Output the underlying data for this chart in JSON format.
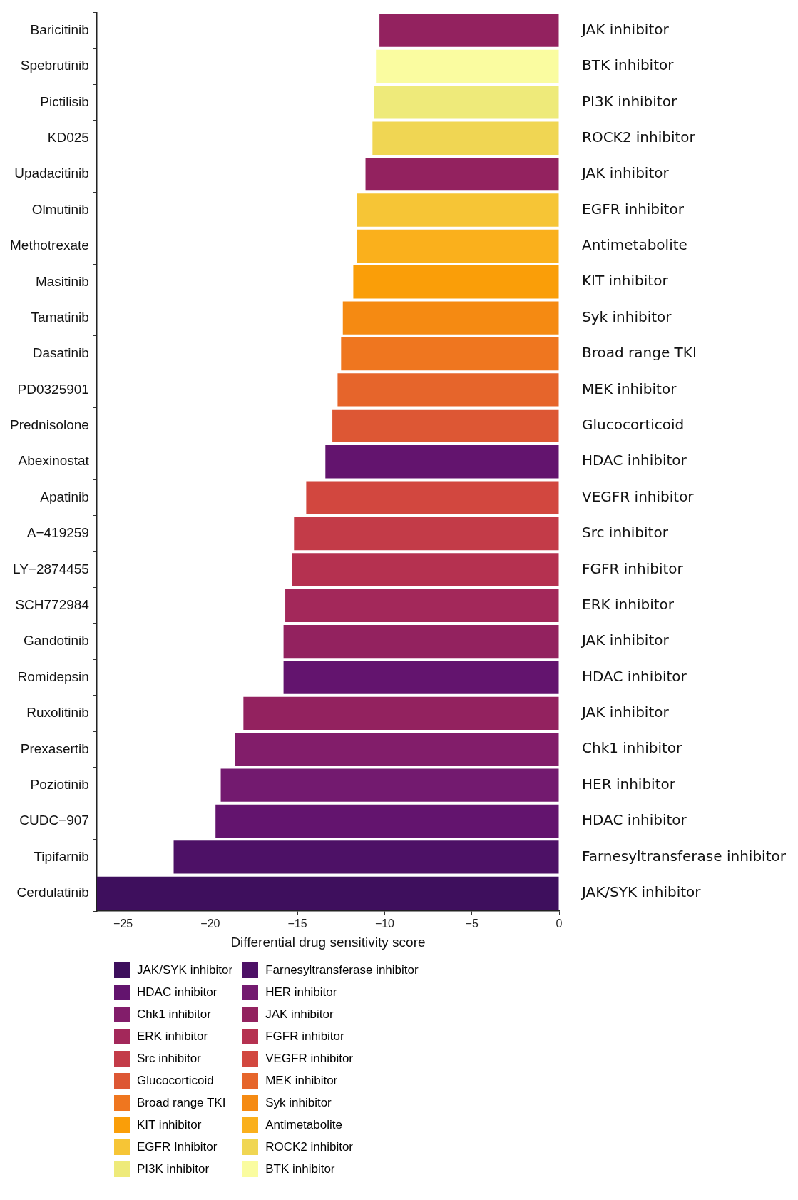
{
  "chart_data": {
    "type": "bar",
    "orientation": "horizontal",
    "stacked": true,
    "xlabel": "Differential drug sensitivity score",
    "categories": [
      "Baricitinib",
      "Spebrutinib",
      "Pictilisib",
      "KD025",
      "Upadacitinib",
      "Olmutinib",
      "Methotrexate",
      "Masitinib",
      "Tamatinib",
      "Dasatinib",
      "PD0325901",
      "Prednisolone",
      "Abexinostat",
      "Apatinib",
      "A−419259",
      "LY−2874455",
      "SCH772984",
      "Gandotinib",
      "Romidepsin",
      "Ruxolitinib",
      "Prexasertib",
      "Poziotinib",
      "CUDC−907",
      "Tipifarnib",
      "Cerdulatinib"
    ],
    "xlim": [
      -26.5,
      0
    ],
    "xticks": [
      {
        "value": -25,
        "label": "−25"
      },
      {
        "value": -20,
        "label": "−20"
      },
      {
        "value": -15,
        "label": "−15"
      },
      {
        "value": -10,
        "label": "−10"
      },
      {
        "value": -5,
        "label": "−5"
      },
      0
    ],
    "legend": "bottom left",
    "series": [
      {
        "name": "JAK/SYK inhibitor",
        "color": "#3e0f5d",
        "values": [
          null,
          null,
          null,
          null,
          null,
          null,
          null,
          null,
          null,
          null,
          null,
          null,
          null,
          null,
          null,
          null,
          null,
          null,
          null,
          null,
          null,
          null,
          null,
          null,
          -26.5
        ]
      },
      {
        "name": "Farnesyltransferase inhibitor",
        "color": "#4d1166",
        "values": [
          null,
          null,
          null,
          null,
          null,
          null,
          null,
          null,
          null,
          null,
          null,
          null,
          null,
          null,
          null,
          null,
          null,
          null,
          null,
          null,
          null,
          null,
          null,
          -22.1,
          null
        ]
      },
      {
        "name": "HDAC inhibitor",
        "color": "#63146e",
        "values": [
          null,
          null,
          null,
          null,
          null,
          null,
          null,
          null,
          null,
          null,
          null,
          null,
          -13.4,
          null,
          null,
          null,
          null,
          null,
          -15.8,
          null,
          null,
          null,
          -19.7,
          null,
          null
        ]
      },
      {
        "name": "HER inhibitor",
        "color": "#731a6f",
        "values": [
          null,
          null,
          null,
          null,
          null,
          null,
          null,
          null,
          null,
          null,
          null,
          null,
          null,
          null,
          null,
          null,
          null,
          null,
          null,
          null,
          null,
          -19.4,
          null,
          null,
          null
        ]
      },
      {
        "name": "Chk1 inhibitor",
        "color": "#821d6a",
        "values": [
          null,
          null,
          null,
          null,
          null,
          null,
          null,
          null,
          null,
          null,
          null,
          null,
          null,
          null,
          null,
          null,
          null,
          null,
          null,
          null,
          -18.6,
          null,
          null,
          null,
          null
        ]
      },
      {
        "name": "JAK inhibitor",
        "color": "#93225f",
        "values": [
          -10.3,
          null,
          null,
          null,
          -11.1,
          null,
          null,
          null,
          null,
          null,
          null,
          null,
          null,
          null,
          null,
          null,
          null,
          -15.8,
          null,
          -18.1,
          null,
          null,
          null,
          null,
          null
        ]
      },
      {
        "name": "ERK inhibitor",
        "color": "#a3285a",
        "values": [
          null,
          null,
          null,
          null,
          null,
          null,
          null,
          null,
          null,
          null,
          null,
          null,
          null,
          null,
          null,
          null,
          -15.7,
          null,
          null,
          null,
          null,
          null,
          null,
          null,
          null
        ]
      },
      {
        "name": "FGFR inhibitor",
        "color": "#b53150",
        "values": [
          null,
          null,
          null,
          null,
          null,
          null,
          null,
          null,
          null,
          null,
          null,
          null,
          null,
          null,
          null,
          -15.3,
          null,
          null,
          null,
          null,
          null,
          null,
          null,
          null,
          null
        ]
      },
      {
        "name": "Src inhibitor",
        "color": "#c33b48",
        "values": [
          null,
          null,
          null,
          null,
          null,
          null,
          null,
          null,
          null,
          null,
          null,
          null,
          null,
          null,
          -15.2,
          null,
          null,
          null,
          null,
          null,
          null,
          null,
          null,
          null,
          null
        ]
      },
      {
        "name": "VEGFR inhibitor",
        "color": "#d2473f",
        "values": [
          null,
          null,
          null,
          null,
          null,
          null,
          null,
          null,
          null,
          null,
          null,
          null,
          null,
          -14.5,
          null,
          null,
          null,
          null,
          null,
          null,
          null,
          null,
          null,
          null,
          null
        ]
      },
      {
        "name": "Glucocorticoid",
        "color": "#dd5734",
        "values": [
          null,
          null,
          null,
          null,
          null,
          null,
          null,
          null,
          null,
          null,
          null,
          -13.0,
          null,
          null,
          null,
          null,
          null,
          null,
          null,
          null,
          null,
          null,
          null,
          null,
          null
        ]
      },
      {
        "name": "MEK inhibitor",
        "color": "#e6652b",
        "values": [
          null,
          null,
          null,
          null,
          null,
          null,
          null,
          null,
          null,
          null,
          -12.7,
          null,
          null,
          null,
          null,
          null,
          null,
          null,
          null,
          null,
          null,
          null,
          null,
          null,
          null
        ]
      },
      {
        "name": "Broad range TKI",
        "color": "#ef761f",
        "values": [
          null,
          null,
          null,
          null,
          null,
          null,
          null,
          null,
          null,
          -12.5,
          null,
          null,
          null,
          null,
          null,
          null,
          null,
          null,
          null,
          null,
          null,
          null,
          null,
          null,
          null
        ]
      },
      {
        "name": "Syk inhibitor",
        "color": "#f58a12",
        "values": [
          null,
          null,
          null,
          null,
          null,
          null,
          null,
          null,
          -12.4,
          null,
          null,
          null,
          null,
          null,
          null,
          null,
          null,
          null,
          null,
          null,
          null,
          null,
          null,
          null,
          null
        ]
      },
      {
        "name": "KIT inhibitor",
        "color": "#fa9e08",
        "values": [
          null,
          null,
          null,
          null,
          null,
          null,
          null,
          -11.8,
          null,
          null,
          null,
          null,
          null,
          null,
          null,
          null,
          null,
          null,
          null,
          null,
          null,
          null,
          null,
          null,
          null
        ]
      },
      {
        "name": "Antimetabolite",
        "color": "#fab01c",
        "values": [
          null,
          null,
          null,
          null,
          null,
          null,
          -11.6,
          null,
          null,
          null,
          null,
          null,
          null,
          null,
          null,
          null,
          null,
          null,
          null,
          null,
          null,
          null,
          null,
          null,
          null
        ]
      },
      {
        "name": "EGFR Inhibitor",
        "color": "#f6c536",
        "values": [
          null,
          null,
          null,
          null,
          null,
          -11.6,
          null,
          null,
          null,
          null,
          null,
          null,
          null,
          null,
          null,
          null,
          null,
          null,
          null,
          null,
          null,
          null,
          null,
          null,
          null
        ]
      },
      {
        "name": "ROCK2 inhibitor",
        "color": "#f0d653",
        "values": [
          null,
          null,
          null,
          -10.7,
          null,
          null,
          null,
          null,
          null,
          null,
          null,
          null,
          null,
          null,
          null,
          null,
          null,
          null,
          null,
          null,
          null,
          null,
          null,
          null,
          null
        ]
      },
      {
        "name": "PI3K inhibitor",
        "color": "#eeea7a",
        "values": [
          null,
          null,
          -10.6,
          null,
          null,
          null,
          null,
          null,
          null,
          null,
          null,
          null,
          null,
          null,
          null,
          null,
          null,
          null,
          null,
          null,
          null,
          null,
          null,
          null,
          null
        ]
      },
      {
        "name": "BTK inhibitor",
        "color": "#fafca0",
        "values": [
          null,
          -10.5,
          null,
          null,
          null,
          null,
          null,
          null,
          null,
          null,
          null,
          null,
          null,
          null,
          null,
          null,
          null,
          null,
          null,
          null,
          null,
          null,
          null,
          null,
          null
        ]
      }
    ],
    "annotations": [
      "JAK inhibitor",
      "BTK inhibitor",
      "PI3K inhibitor",
      "ROCK2 inhibitor",
      "JAK inhibitor",
      "EGFR inhibitor",
      "Antimetabolite",
      "KIT inhibitor",
      "Syk inhibitor",
      "Broad range TKI",
      "MEK inhibitor",
      "Glucocorticoid",
      "HDAC inhibitor",
      "VEGFR inhibitor",
      "Src inhibitor",
      "FGFR inhibitor",
      "ERK inhibitor",
      "JAK inhibitor",
      "HDAC inhibitor",
      "JAK inhibitor",
      "Chk1 inhibitor",
      "HER inhibitor",
      "HDAC inhibitor",
      "Farnesyltransferase inhibitor",
      "JAK/SYK inhibitor"
    ]
  }
}
